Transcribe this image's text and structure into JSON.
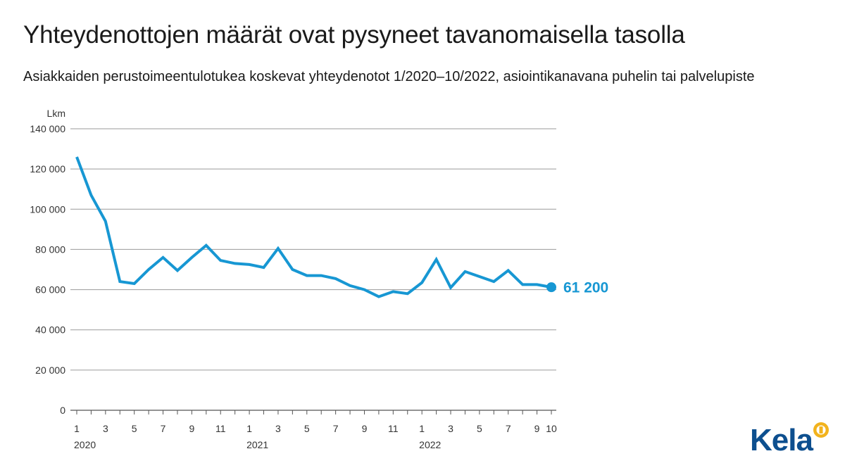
{
  "title": "Yhteydenottojen määrät ovat pysyneet tavanomaisella tasolla",
  "subtitle": "Asiakkaiden perustoimeentulotukea koskevat yhteydenotot 1/2020–10/2022, asiointikanavana puhelin tai palvelupiste",
  "logo_text": "Kela",
  "colors": {
    "series": "#1797d3",
    "grid": "#9a9a9a",
    "text": "#333333",
    "logo": "#0d4f8f",
    "logo_accent": "#f2b31d"
  },
  "chart_data": {
    "type": "line",
    "ylabel": "Lkm",
    "ylim": [
      0,
      140000
    ],
    "yticks": [
      0,
      20000,
      40000,
      60000,
      80000,
      100000,
      120000,
      140000
    ],
    "ytick_labels": [
      "0",
      "20 000",
      "40 000",
      "60 000",
      "80 000",
      "100 000",
      "120 000",
      "140 000"
    ],
    "grid": true,
    "x": [
      "2020-01",
      "2020-02",
      "2020-03",
      "2020-04",
      "2020-05",
      "2020-06",
      "2020-07",
      "2020-08",
      "2020-09",
      "2020-10",
      "2020-11",
      "2020-12",
      "2021-01",
      "2021-02",
      "2021-03",
      "2021-04",
      "2021-05",
      "2021-06",
      "2021-07",
      "2021-08",
      "2021-09",
      "2021-10",
      "2021-11",
      "2021-12",
      "2022-01",
      "2022-02",
      "2022-03",
      "2022-04",
      "2022-05",
      "2022-06",
      "2022-07",
      "2022-08",
      "2022-09",
      "2022-10"
    ],
    "xtick_labels": [
      "1",
      "3",
      "5",
      "7",
      "9",
      "11",
      "1",
      "3",
      "5",
      "7",
      "9",
      "11",
      "1",
      "3",
      "5",
      "7",
      "9",
      "10"
    ],
    "xtick_months": [
      "2020-01",
      "2020-03",
      "2020-05",
      "2020-07",
      "2020-09",
      "2020-11",
      "2021-01",
      "2021-03",
      "2021-05",
      "2021-07",
      "2021-09",
      "2021-11",
      "2022-01",
      "2022-03",
      "2022-05",
      "2022-07",
      "2022-09",
      "2022-10"
    ],
    "year_labels": [
      {
        "label": "2020",
        "month": "2020-01"
      },
      {
        "label": "2021",
        "month": "2021-01"
      },
      {
        "label": "2022",
        "month": "2022-01"
      }
    ],
    "series": [
      {
        "values": [
          126000,
          107000,
          94000,
          64000,
          63000,
          70000,
          76000,
          69500,
          76000,
          82000,
          74500,
          73000,
          72500,
          71000,
          80500,
          70000,
          67000,
          67000,
          65500,
          62000,
          60000,
          56500,
          59000,
          58000,
          63500,
          75000,
          61000,
          69000,
          66500,
          64000,
          69500,
          62500,
          62500,
          61200
        ]
      }
    ],
    "end_label": "61 200"
  }
}
